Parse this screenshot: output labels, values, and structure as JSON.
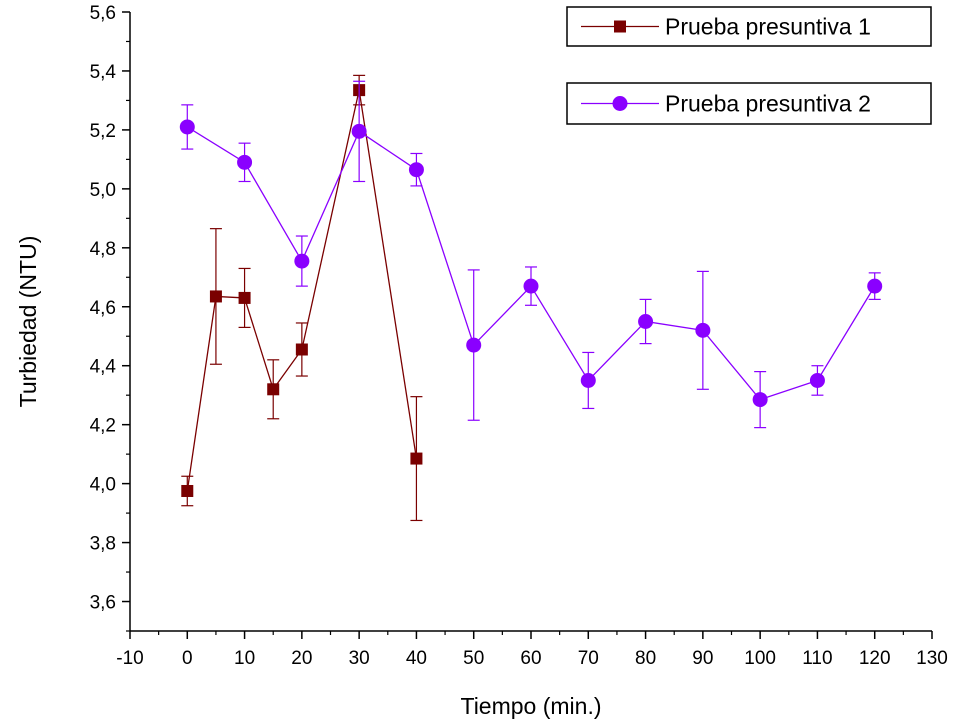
{
  "chart_data": {
    "type": "line",
    "xlabel": "Tiempo (min.)",
    "ylabel": "Turbiedad (NTU)",
    "xlim": [
      -10,
      130
    ],
    "ylim": [
      3.5,
      5.6
    ],
    "x_ticks": [
      -10,
      0,
      10,
      20,
      30,
      40,
      50,
      60,
      70,
      80,
      90,
      100,
      110,
      120,
      130
    ],
    "x_tick_labels": [
      "-10",
      "0",
      "10",
      "20",
      "30",
      "40",
      "50",
      "60",
      "70",
      "80",
      "90",
      "100",
      "110",
      "120",
      "130"
    ],
    "y_ticks": [
      3.6,
      3.8,
      4.0,
      4.2,
      4.4,
      4.6,
      4.8,
      5.0,
      5.2,
      5.4,
      5.6
    ],
    "y_tick_labels": [
      "3,6",
      "3,8",
      "4,0",
      "4,2",
      "4,4",
      "4,6",
      "4,8",
      "5,0",
      "5,2",
      "5,4",
      "5,6"
    ],
    "grid": false,
    "legend_position": "top-right",
    "series": [
      {
        "name": "Prueba presuntiva 1",
        "color": "#7a0000",
        "marker": "square",
        "points": [
          {
            "x": 0,
            "y": 3.975,
            "err": 0.05
          },
          {
            "x": 5,
            "y": 4.635,
            "err": 0.23
          },
          {
            "x": 10,
            "y": 4.63,
            "err": 0.1
          },
          {
            "x": 15,
            "y": 4.32,
            "err": 0.1
          },
          {
            "x": 20,
            "y": 4.455,
            "err": 0.09
          },
          {
            "x": 30,
            "y": 5.335,
            "err": 0.05
          },
          {
            "x": 40,
            "y": 4.085,
            "err": 0.21
          }
        ]
      },
      {
        "name": "Prueba presuntiva 2",
        "color": "#8a00ff",
        "marker": "circle",
        "points": [
          {
            "x": 0,
            "y": 5.21,
            "err": 0.075
          },
          {
            "x": 10,
            "y": 5.09,
            "err": 0.065
          },
          {
            "x": 20,
            "y": 4.755,
            "err": 0.085
          },
          {
            "x": 30,
            "y": 5.195,
            "err": 0.17
          },
          {
            "x": 40,
            "y": 5.065,
            "err": 0.055
          },
          {
            "x": 50,
            "y": 4.47,
            "err": 0.255
          },
          {
            "x": 60,
            "y": 4.67,
            "err": 0.065
          },
          {
            "x": 70,
            "y": 4.35,
            "err": 0.095
          },
          {
            "x": 80,
            "y": 4.55,
            "err": 0.075
          },
          {
            "x": 90,
            "y": 4.52,
            "err": 0.2
          },
          {
            "x": 100,
            "y": 4.285,
            "err": 0.095
          },
          {
            "x": 110,
            "y": 4.35,
            "err": 0.05
          },
          {
            "x": 120,
            "y": 4.67,
            "err": 0.045
          }
        ]
      }
    ]
  }
}
